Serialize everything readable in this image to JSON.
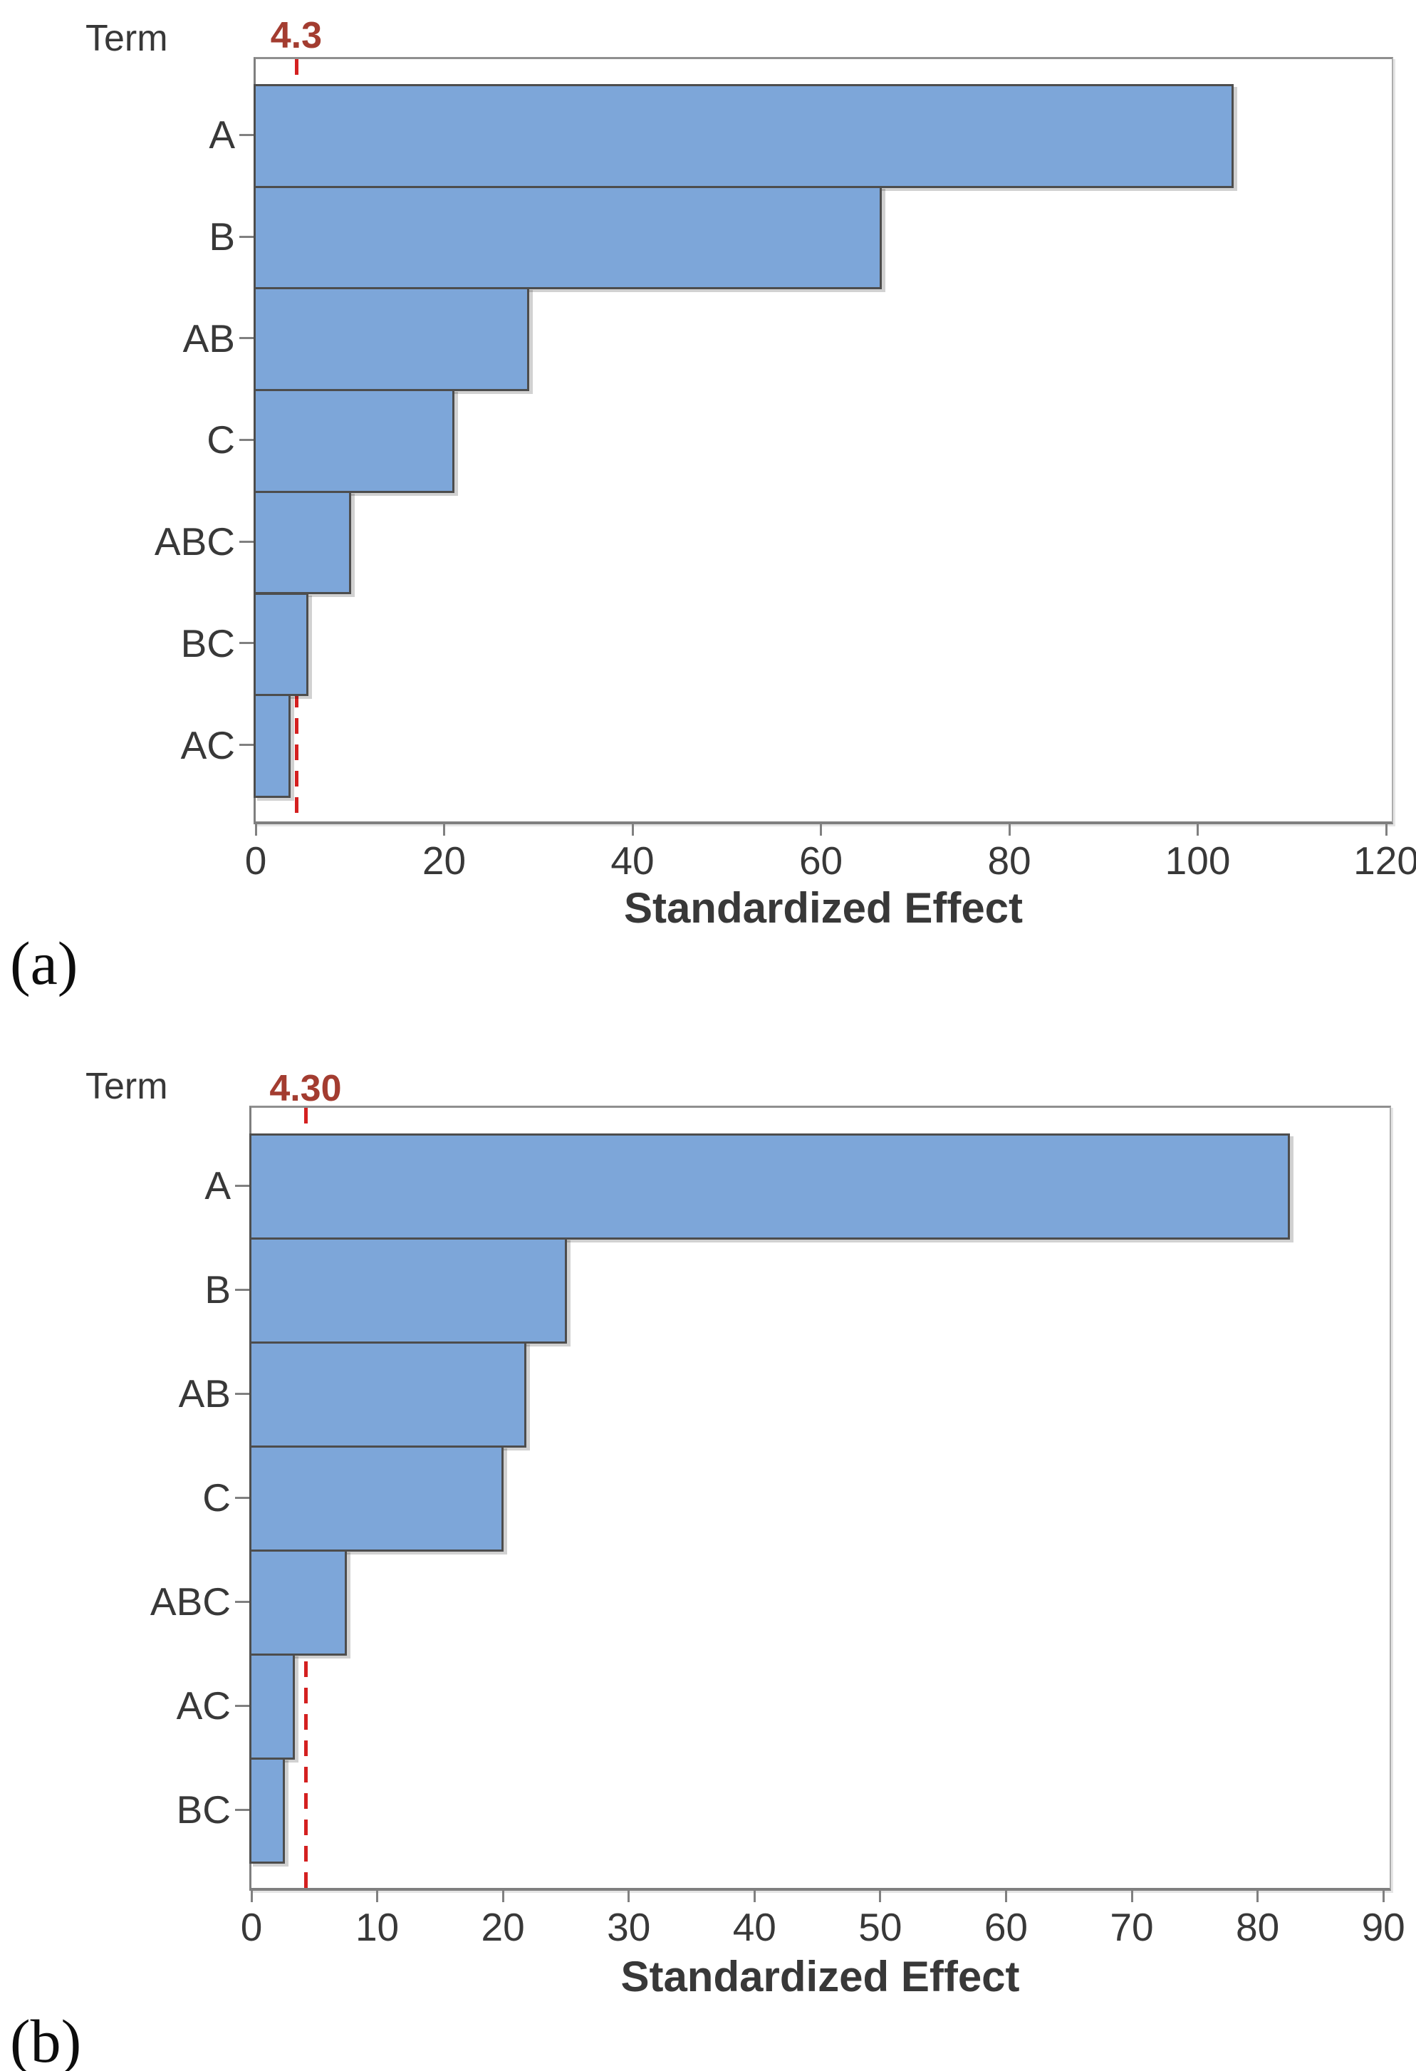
{
  "figure": {
    "panels": [
      {
        "corner_label": "(a)",
        "y_axis_title": "Term",
        "x_axis_title": "Standardized Effect",
        "reference_label": "4.3"
      },
      {
        "corner_label": "(b)",
        "y_axis_title": "Term",
        "x_axis_title": "Standardized Effect",
        "reference_label": "4.30"
      }
    ]
  },
  "chart_data": [
    {
      "type": "bar",
      "orientation": "horizontal",
      "title": "Pareto chart of standardized effects (panel a)",
      "categories": [
        "A",
        "B",
        "AB",
        "C",
        "ABC",
        "BC",
        "AC"
      ],
      "values": [
        103.6,
        66.2,
        28.8,
        20.9,
        9.9,
        5.4,
        3.5
      ],
      "reference_line": 4.3,
      "reference_label": "4.3",
      "xlabel": "Standardized Effect",
      "ylabel": "Term",
      "xticks": [
        0,
        20,
        40,
        60,
        80,
        100,
        120
      ],
      "xlim": [
        0,
        120.6
      ],
      "grid": false,
      "legend": "none"
    },
    {
      "type": "bar",
      "orientation": "horizontal",
      "title": "Pareto chart of standardized effects (panel b)",
      "categories": [
        "A",
        "B",
        "AB",
        "C",
        "ABC",
        "AC",
        "BC"
      ],
      "values": [
        82.4,
        24.9,
        21.7,
        19.9,
        7.4,
        3.3,
        2.5
      ],
      "reference_line": 4.3,
      "reference_label": "4.30",
      "xlabel": "Standardized Effect",
      "ylabel": "Term",
      "xticks": [
        0,
        10,
        20,
        30,
        40,
        50,
        60,
        70,
        80,
        90
      ],
      "xlim": [
        0,
        90.5
      ],
      "grid": false,
      "legend": "none"
    }
  ],
  "colors": {
    "bar_fill": "#7da6d9",
    "bar_border": "#4d4d4d",
    "reference_line": "#d42020",
    "reference_label_text": "#a33c30",
    "axis_gray": "#808080",
    "text": "#383838"
  }
}
